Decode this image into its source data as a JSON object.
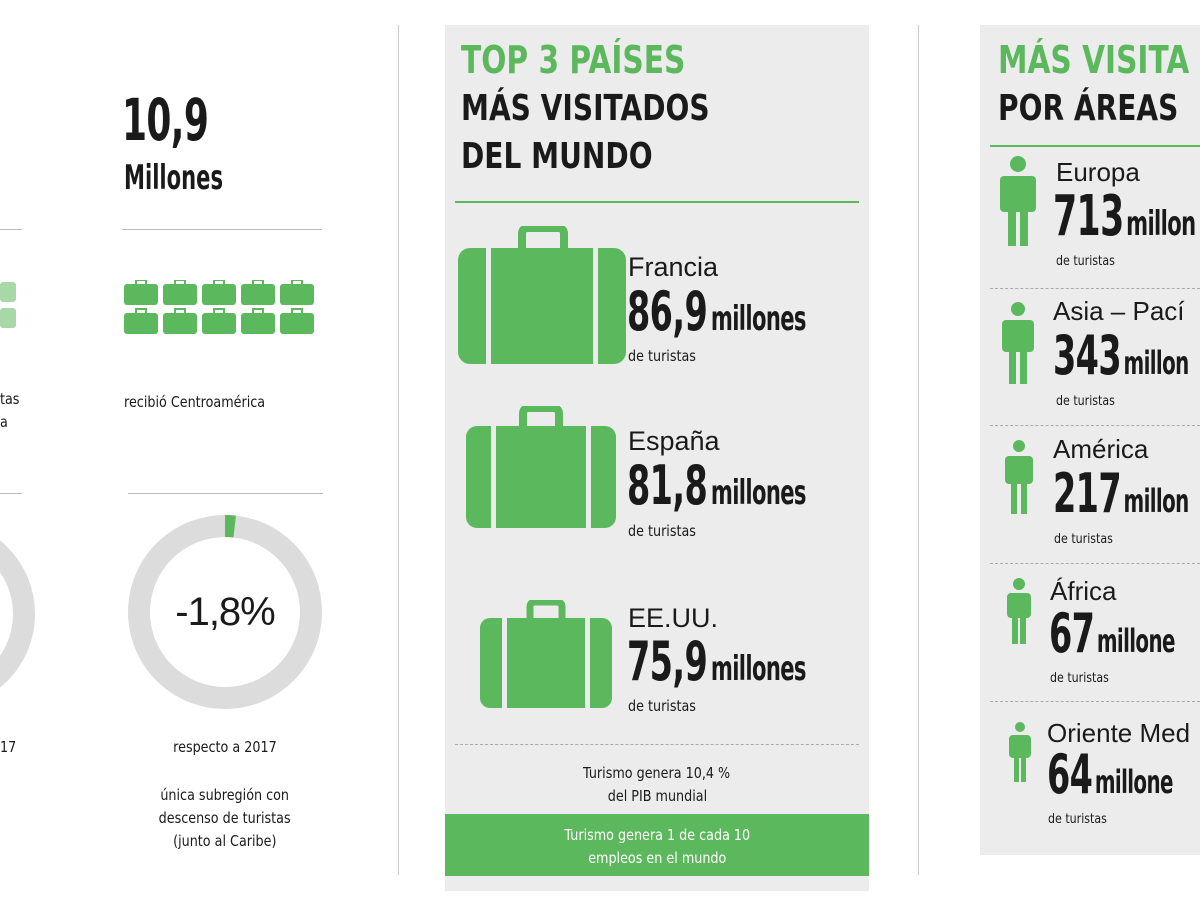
{
  "left_col": {
    "stat_value": "10,9",
    "stat_unit": "Millones",
    "text_fragments": [
      "tas",
      "a"
    ],
    "subtitle": "recibió Centroamérica",
    "left_fragment_year": "17",
    "donut_value": "-1,8%",
    "donut_caption": "respecto a 2017",
    "note": [
      "única subregión con",
      "descenso de turistas",
      "(junto al Caribe)"
    ]
  },
  "top3": {
    "title_green": "TOP 3 PAÍSES",
    "title_line2": "MÁS VISITADOS",
    "title_line3": "DEL MUNDO",
    "items": [
      {
        "country": "Francia",
        "value": "86,9",
        "unit": "millones",
        "sub": "de turistas"
      },
      {
        "country": "España",
        "value": "81,8",
        "unit": "millones",
        "sub": "de turistas"
      },
      {
        "country": "EE.UU.",
        "value": "75,9",
        "unit": "millones",
        "sub": "de turistas"
      }
    ],
    "footnote": [
      "Turismo genera 10,4 %",
      "del PIB mundial"
    ],
    "banner": [
      "Turismo genera 1 de cada 10",
      "empleos en el mundo"
    ]
  },
  "areas": {
    "title_green": "MÁS VISITA",
    "title_line2": "POR ÁREAS",
    "items": [
      {
        "region": "Europa",
        "value": "713",
        "unit": "millon",
        "sub": "de turistas"
      },
      {
        "region": "Asia – Pací",
        "value": "343",
        "unit": "millon",
        "sub": "de turistas"
      },
      {
        "region": "América",
        "value": "217",
        "unit": "millon",
        "sub": "de turistas"
      },
      {
        "region": "África",
        "value": "67",
        "unit": "millone",
        "sub": "de turistas"
      },
      {
        "region": "Oriente Med",
        "value": "64",
        "unit": "millone",
        "sub": "de turistas"
      }
    ]
  },
  "colors": {
    "accent": "#5cb85c",
    "panel": "#ececec",
    "ring": "#dcdcdc",
    "text": "#1a1a1a"
  },
  "icons": [
    "suitcase-icon",
    "person-icon"
  ],
  "donut_fill_fraction": 0.018
}
